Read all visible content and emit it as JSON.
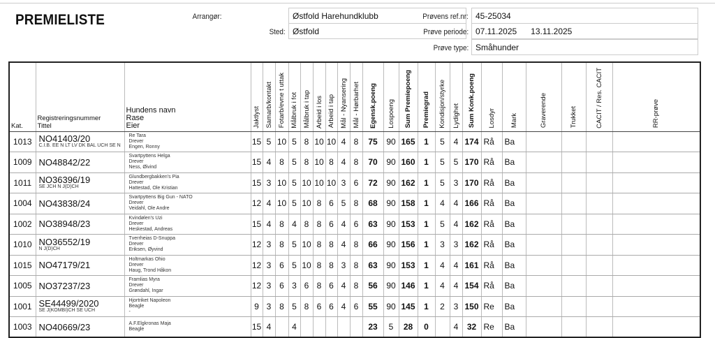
{
  "header": {
    "title": "PREMIELISTE",
    "arrangor_label": "Arrangør:",
    "arrangor": "Østfold Harehundklubb",
    "sted_label": "Sted:",
    "sted": "Østfold",
    "ref_label": "Prøvens ref.nr:",
    "ref": "45-25034",
    "periode_label": "Prøve periode:",
    "periode_fra": "07.11.2025",
    "periode_til": "13.11.2025",
    "type_label": "Prøve type:",
    "type": "Småhunder"
  },
  "columns": {
    "kat": "Kat.",
    "reg": "Registreringsnummer",
    "tittel": "Tittel",
    "navn": "Hundens navn",
    "rase": "Rase",
    "eier": "Eier",
    "scores": [
      "Jaktlyst",
      "Samarb/kontakt",
      "Fotarb/evne t uttak",
      "Målbruk i fot",
      "Målbruk i tap",
      "Arbeid i los",
      "Arbeid i tap",
      "Mål - Nyansering",
      "Mål - Hørbarhet",
      "Egensk.poeng",
      "Lospoeng",
      "Sum Premiepoeng",
      "Premiegrad",
      "Kondisjon/styrke",
      "Lydighet",
      "Sum Konk.poeng",
      "Losdyr",
      "Mark",
      "Graverende",
      "Trukket",
      "CACIT / Res. CACIT",
      "RR-prøve"
    ]
  },
  "rows": [
    {
      "kat": "1013",
      "reg": "NO41403/20",
      "tittel": "C.I.B. EE N LT LV DK BAL UCH SE N",
      "navn": "Re Tara",
      "rase": "Drever",
      "eier": "Engen, Ronny",
      "v": [
        "15",
        "5",
        "10",
        "5",
        "8",
        "10",
        "10",
        "4",
        "8",
        "75",
        "90",
        "165",
        "1",
        "5",
        "4",
        "174",
        "Rå",
        "Ba",
        "",
        "",
        "",
        ""
      ]
    },
    {
      "kat": "1009",
      "reg": "NO48842/22",
      "tittel": "",
      "navn": "Svartpyttens Helga",
      "rase": "Drever",
      "eier": "Ness, Øivind",
      "v": [
        "15",
        "4",
        "8",
        "5",
        "8",
        "10",
        "8",
        "4",
        "8",
        "70",
        "90",
        "160",
        "1",
        "5",
        "5",
        "170",
        "Rå",
        "Ba",
        "",
        "",
        "",
        ""
      ]
    },
    {
      "kat": "1011",
      "reg": "NO36396/19",
      "tittel": "SE JCH N J(D)CH",
      "navn": "Glundbergbakken's Pia",
      "rase": "Drever",
      "eier": "Hattestad, Ole Kristian",
      "v": [
        "15",
        "3",
        "10",
        "5",
        "10",
        "10",
        "10",
        "3",
        "6",
        "72",
        "90",
        "162",
        "1",
        "5",
        "3",
        "170",
        "Rå",
        "Ba",
        "",
        "",
        "",
        ""
      ]
    },
    {
      "kat": "1004",
      "reg": "NO43838/24",
      "tittel": "",
      "navn": "Svartpyttens Big Gun - NATO",
      "rase": "Drever",
      "eier": "Veidahl, Ole Andre",
      "v": [
        "12",
        "4",
        "10",
        "5",
        "10",
        "8",
        "6",
        "5",
        "8",
        "68",
        "90",
        "158",
        "1",
        "4",
        "4",
        "166",
        "Rå",
        "Ba",
        "",
        "",
        "",
        ""
      ]
    },
    {
      "kat": "1002",
      "reg": "NO38948/23",
      "tittel": "",
      "navn": "Kvindølen's Uzi",
      "rase": "Drever",
      "eier": "Heskestad, Andreas",
      "v": [
        "15",
        "4",
        "8",
        "4",
        "8",
        "8",
        "6",
        "4",
        "6",
        "63",
        "90",
        "153",
        "1",
        "5",
        "4",
        "162",
        "Rå",
        "Ba",
        "",
        "",
        "",
        ""
      ]
    },
    {
      "kat": "1010",
      "reg": "NO36552/19",
      "tittel": "N J(D)CH",
      "navn": "Tverrheias D-Snuppa",
      "rase": "Drever",
      "eier": "Eriksen, Øyvind",
      "v": [
        "12",
        "3",
        "8",
        "5",
        "10",
        "8",
        "8",
        "4",
        "8",
        "66",
        "90",
        "156",
        "1",
        "3",
        "3",
        "162",
        "Rå",
        "Ba",
        "",
        "",
        "",
        ""
      ]
    },
    {
      "kat": "1015",
      "reg": "NO47179/21",
      "tittel": "",
      "navn": "Holtmarkas Ohio",
      "rase": "Drever",
      "eier": "Haug, Trond Håkon",
      "v": [
        "12",
        "3",
        "6",
        "5",
        "10",
        "8",
        "8",
        "3",
        "8",
        "63",
        "90",
        "153",
        "1",
        "4",
        "4",
        "161",
        "Rå",
        "Ba",
        "",
        "",
        "",
        ""
      ]
    },
    {
      "kat": "1005",
      "reg": "NO37237/23",
      "tittel": "",
      "navn": "Framlias Myra",
      "rase": "Drever",
      "eier": "Grøndahl, Ingar",
      "v": [
        "12",
        "3",
        "6",
        "3",
        "6",
        "8",
        "6",
        "4",
        "8",
        "56",
        "90",
        "146",
        "1",
        "4",
        "4",
        "154",
        "Rå",
        "Ba",
        "",
        "",
        "",
        ""
      ]
    },
    {
      "kat": "1001",
      "reg": "SE44499/2020",
      "tittel": "SE J(KOMBI)CH SE UCH",
      "navn": "Hjortriket Napoleon",
      "rase": "Beagle",
      "eier": "-",
      "v": [
        "9",
        "3",
        "8",
        "5",
        "8",
        "6",
        "6",
        "4",
        "6",
        "55",
        "90",
        "145",
        "1",
        "2",
        "3",
        "150",
        "Re",
        "Ba",
        "",
        "",
        "",
        ""
      ]
    },
    {
      "kat": "1003",
      "reg": "NO40669/23",
      "tittel": "",
      "navn": "A.F.Elgkronas Maja",
      "rase": "Beagle",
      "eier": "",
      "v": [
        "15",
        "4",
        "",
        "4",
        "",
        "",
        "",
        "",
        "",
        "23",
        "5",
        "28",
        "0",
        "",
        "4",
        "32",
        "Re",
        "Ba",
        "",
        "",
        "",
        ""
      ]
    }
  ]
}
